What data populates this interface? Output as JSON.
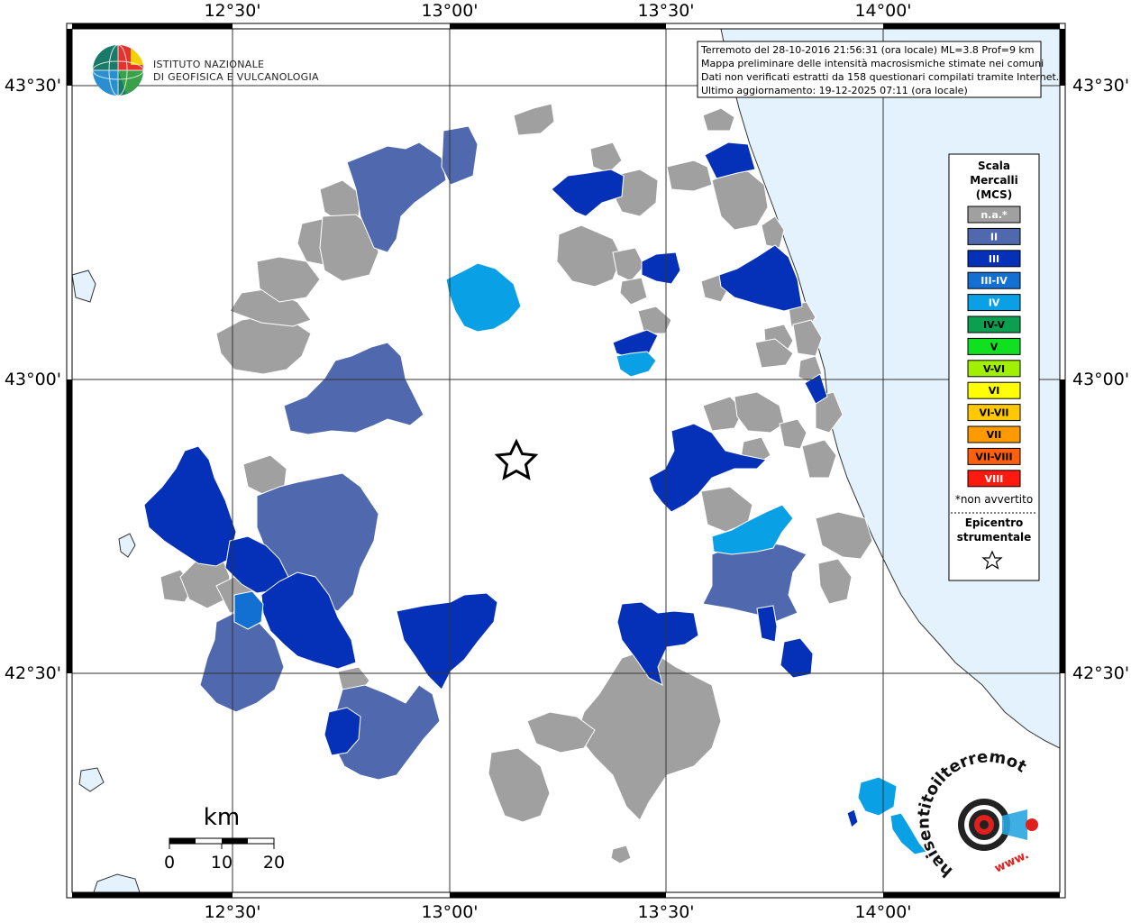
{
  "info_box": {
    "line1": "Terremoto del 28-10-2016 21:56:31 (ora locale) ML=3.8 Prof=9 km",
    "line2": "Mappa preliminare delle intensità macrosismiche stimate nei comuni",
    "line3": "Dati non verificati estratti da 158 questionari compilati tramite Internet.",
    "line4": "Ultimo aggiornamento: 19-12-2025 07:11 (ora locale)"
  },
  "institute": {
    "line1": "ISTITUTO NAZIONALE",
    "line2": "DI GEOFISICA E VULCANOLOGIA"
  },
  "axes": {
    "top": [
      "12°30'",
      "13°00'",
      "13°30'",
      "14°00'"
    ],
    "bottom": [
      "12°30'",
      "13°00'",
      "13°30'",
      "14°00'"
    ],
    "left": [
      "43°30'",
      "43°00'",
      "42°30'"
    ],
    "right": [
      "43°30'",
      "43°00'",
      "42°30'"
    ]
  },
  "legend": {
    "title1": "Scala",
    "title2": "Mercalli",
    "title3": "(MCS)",
    "items": [
      {
        "label": "n.a.*",
        "color": "#a0a0a0",
        "text_color": "#ffffff"
      },
      {
        "label": "II",
        "color": "#5068ad",
        "text_color": "#ffffff"
      },
      {
        "label": "III",
        "color": "#0530b8",
        "text_color": "#ffffff"
      },
      {
        "label": "III-IV",
        "color": "#1370d3",
        "text_color": "#ffffff"
      },
      {
        "label": "IV",
        "color": "#0aa0e6",
        "text_color": "#ffffff"
      },
      {
        "label": "IV-V",
        "color": "#0aa050",
        "text_color": "#000000"
      },
      {
        "label": "V",
        "color": "#10e020",
        "text_color": "#000000"
      },
      {
        "label": "V-VI",
        "color": "#a0f000",
        "text_color": "#000000"
      },
      {
        "label": "VI",
        "color": "#ffff00",
        "text_color": "#000000"
      },
      {
        "label": "VI-VII",
        "color": "#ffc800",
        "text_color": "#000000"
      },
      {
        "label": "VII",
        "color": "#ff9a00",
        "text_color": "#000000"
      },
      {
        "label": "VII-VIII",
        "color": "#ff6010",
        "text_color": "#000000"
      },
      {
        "label": "VIII",
        "color": "#ff1a10",
        "text_color": "#ffffff"
      }
    ],
    "note": "*non avvertito",
    "epicenter1": "Epicentro",
    "epicenter2": "strumentale"
  },
  "scale_bar": {
    "unit": "km",
    "ticks": [
      "0",
      "10",
      "20"
    ]
  },
  "brand": {
    "text": "haisentitoilterremoto.it",
    "prefix": "www.",
    "ring_color": "#e0201c"
  },
  "colors": {
    "sea": "#e3f2fc",
    "na": "#a0a0a0",
    "II": "#5068ad",
    "III": "#0530b8",
    "III_IV": "#1370d3",
    "IV": "#0aa0e6"
  }
}
